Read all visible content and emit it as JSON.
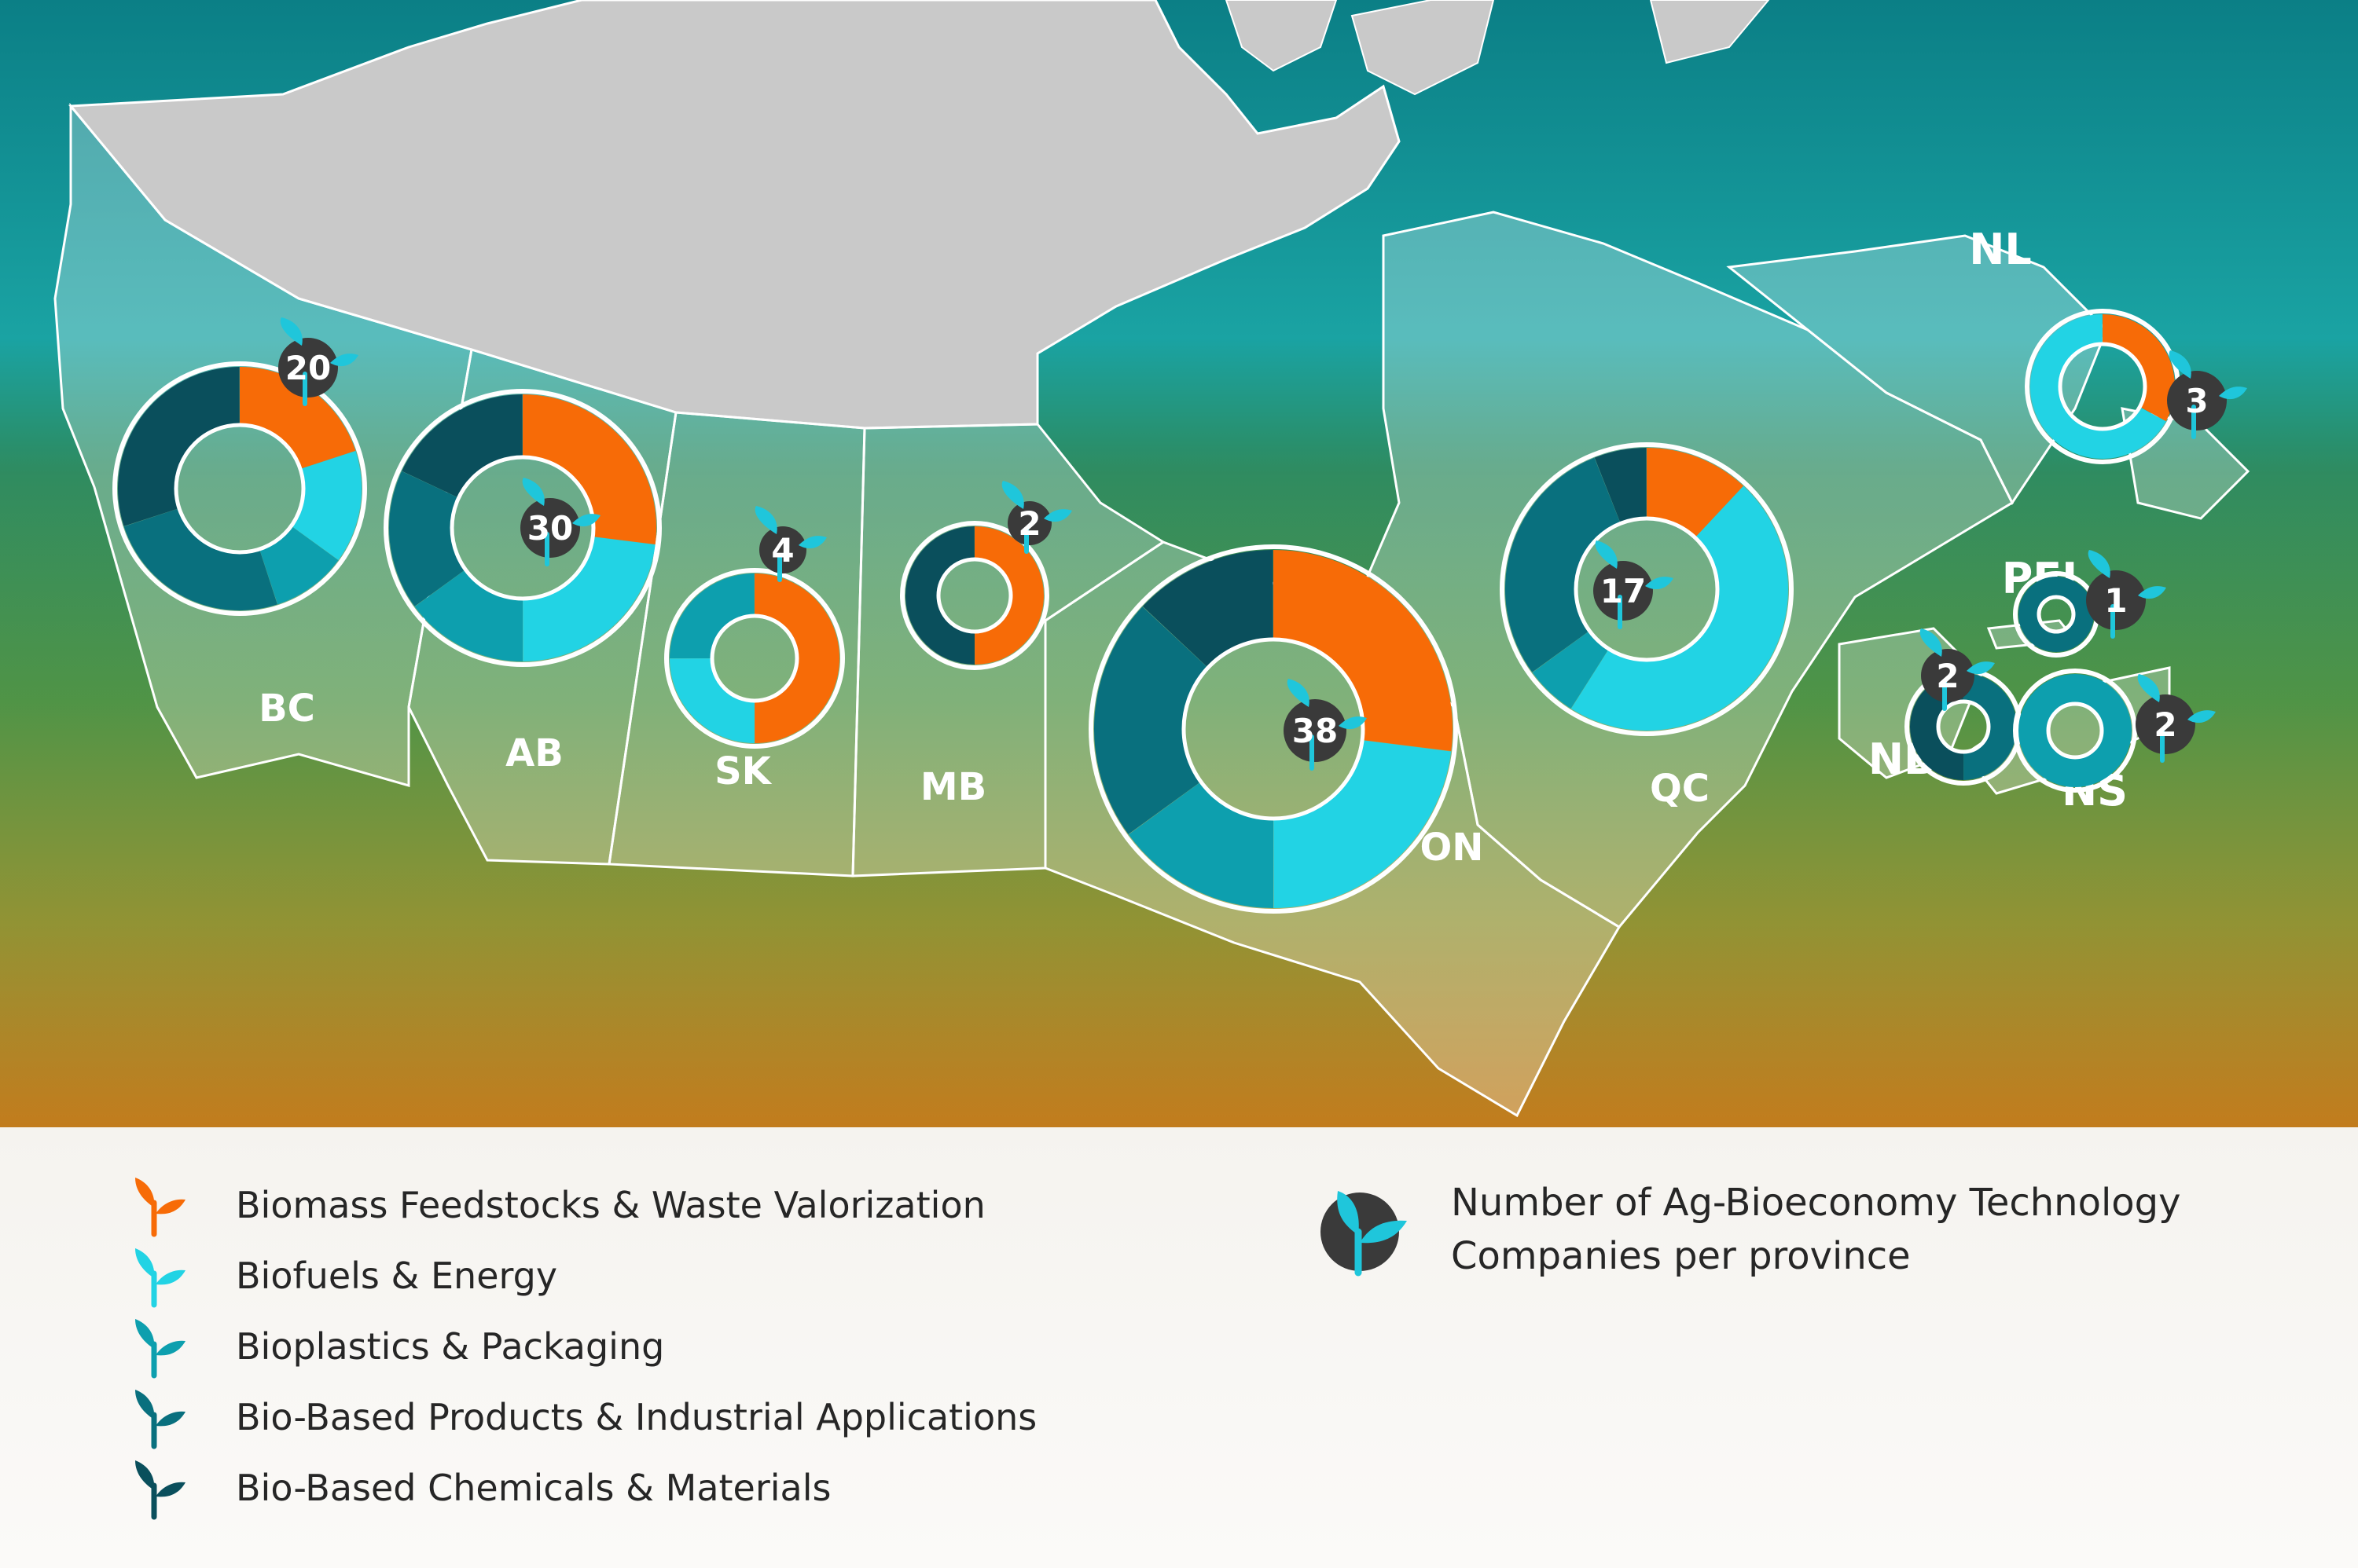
{
  "colors": {
    "biomass": "#f76b07",
    "biofuels": "#22d3e4",
    "bioplastics": "#0d9fae",
    "bio_products": "#09707e",
    "bio_chemicals": "#0a4f5c",
    "count_badge": "#3a3a3a",
    "sprout": "#1fc6db"
  },
  "categories": [
    "Biomass Feedstocks & Waste Valorization",
    "Biofuels & Energy",
    "Bioplastics & Packaging",
    "Bio-Based Products & Industrial Applications",
    "Bio-Based Chemicals & Materials"
  ],
  "count_legend": "Number of Ag-Bioeconomy Technology Companies per province",
  "chart_data": {
    "type": "donut-map",
    "categories": [
      "Biomass Feedstocks & Waste Valorization",
      "Biofuels & Energy",
      "Bioplastics & Packaging",
      "Bio-Based Products & Industrial Applications",
      "Bio-Based Chemicals & Materials"
    ],
    "provinces": [
      {
        "code": "BC",
        "count": 20,
        "shares": [
          0.2,
          0.15,
          0.1,
          0.25,
          0.3
        ]
      },
      {
        "code": "AB",
        "count": 30,
        "shares": [
          0.27,
          0.23,
          0.15,
          0.17,
          0.18
        ]
      },
      {
        "code": "SK",
        "count": 4,
        "shares": [
          0.5,
          0.25,
          0.25,
          0,
          0
        ]
      },
      {
        "code": "MB",
        "count": 2,
        "shares": [
          0.5,
          0,
          0,
          0,
          0.5
        ]
      },
      {
        "code": "ON",
        "count": 38,
        "shares": [
          0.27,
          0.23,
          0.15,
          0.22,
          0.13
        ]
      },
      {
        "code": "QC",
        "count": 17,
        "shares": [
          0.12,
          0.47,
          0.06,
          0.29,
          0.06
        ]
      },
      {
        "code": "NL",
        "count": 3,
        "shares": [
          0.33,
          0.67,
          0,
          0,
          0
        ]
      },
      {
        "code": "PEI",
        "count": 1,
        "shares": [
          0,
          0,
          0,
          1,
          0
        ]
      },
      {
        "code": "NB",
        "count": 2,
        "shares": [
          0,
          0,
          0,
          0.5,
          0.5
        ]
      },
      {
        "code": "NS",
        "count": 2,
        "shares": [
          0,
          0,
          1,
          0,
          0
        ]
      }
    ]
  }
}
